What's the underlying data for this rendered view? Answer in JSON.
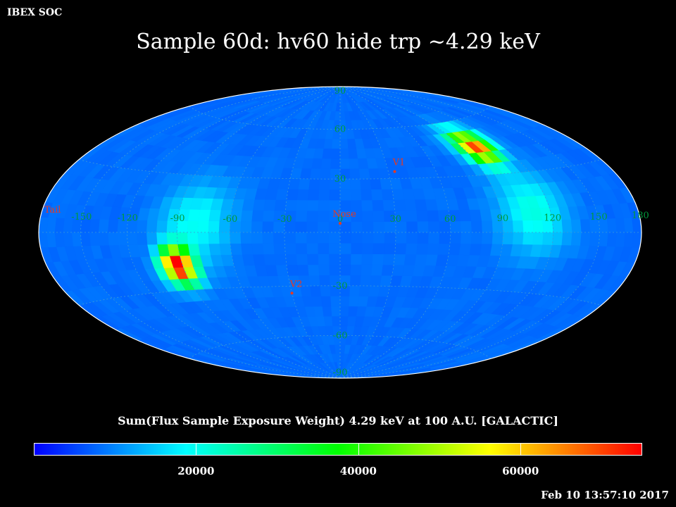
{
  "header": {
    "corner_label": "IBEX SOC",
    "title": "Sample 60d: hv60 hide trp ~4.29 keV"
  },
  "map": {
    "lon_labels": [
      {
        "text": "180",
        "lon": 180
      },
      {
        "text": "150",
        "lon": 150
      },
      {
        "text": "120",
        "lon": 120
      },
      {
        "text": "90",
        "lon": 90
      },
      {
        "text": "60",
        "lon": 60
      },
      {
        "text": "30",
        "lon": 30
      },
      {
        "text": "0",
        "lon": 0
      },
      {
        "text": "-30",
        "lon": -30
      },
      {
        "text": "-60",
        "lon": -60
      },
      {
        "text": "-90",
        "lon": -90
      },
      {
        "text": "-120",
        "lon": -120
      },
      {
        "text": "-150",
        "lon": -150
      }
    ],
    "lat_labels": [
      {
        "text": "90",
        "lat": 90
      },
      {
        "text": "60",
        "lat": 60
      },
      {
        "text": "30",
        "lat": 30
      },
      {
        "text": "-30",
        "lat": -30
      },
      {
        "text": "-60",
        "lat": -60
      },
      {
        "text": "-90",
        "lat": -90
      }
    ],
    "markers": [
      {
        "label": "V1",
        "lon": 34,
        "lat": 34
      },
      {
        "label": "Nose",
        "lon": 0,
        "lat": 5
      },
      {
        "label": "V2",
        "lon": -30,
        "lat": -34
      },
      {
        "label": "Tail",
        "lon": -180,
        "lat": 5
      }
    ],
    "colors": {
      "background": "#0050f0",
      "grid": "#3a9ad8",
      "label": "#009a3c",
      "marker": "#e83a20",
      "outline": "#ffffff"
    }
  },
  "chart_data": {
    "type": "heatmap",
    "projection": "Hammer-Aitoff (galactic)",
    "colorbar_title": "Sum(Flux Sample Exposure Weight)  4.29 keV at 100 A.U. [GALACTIC]",
    "colorbar_ticks": [
      20000,
      40000,
      60000
    ],
    "colorbar_range": [
      0,
      75000
    ],
    "colorbar_stops": [
      "#0000ff",
      "#00ffff",
      "#00ff00",
      "#ffff00",
      "#ff0000"
    ],
    "background_value": 8000,
    "hotspots": [
      {
        "lon": 100,
        "lat": 45,
        "peak": 62000,
        "spread": 13
      },
      {
        "lon": -93,
        "lat": -17,
        "peak": 74000,
        "spread": 13
      },
      {
        "lon": 110,
        "lat": 10,
        "peak": 13000,
        "spread": 28
      },
      {
        "lon": -80,
        "lat": 5,
        "peak": 12000,
        "spread": 28
      }
    ]
  },
  "footer": {
    "timestamp": "Feb 10 13:57:10 2017"
  }
}
